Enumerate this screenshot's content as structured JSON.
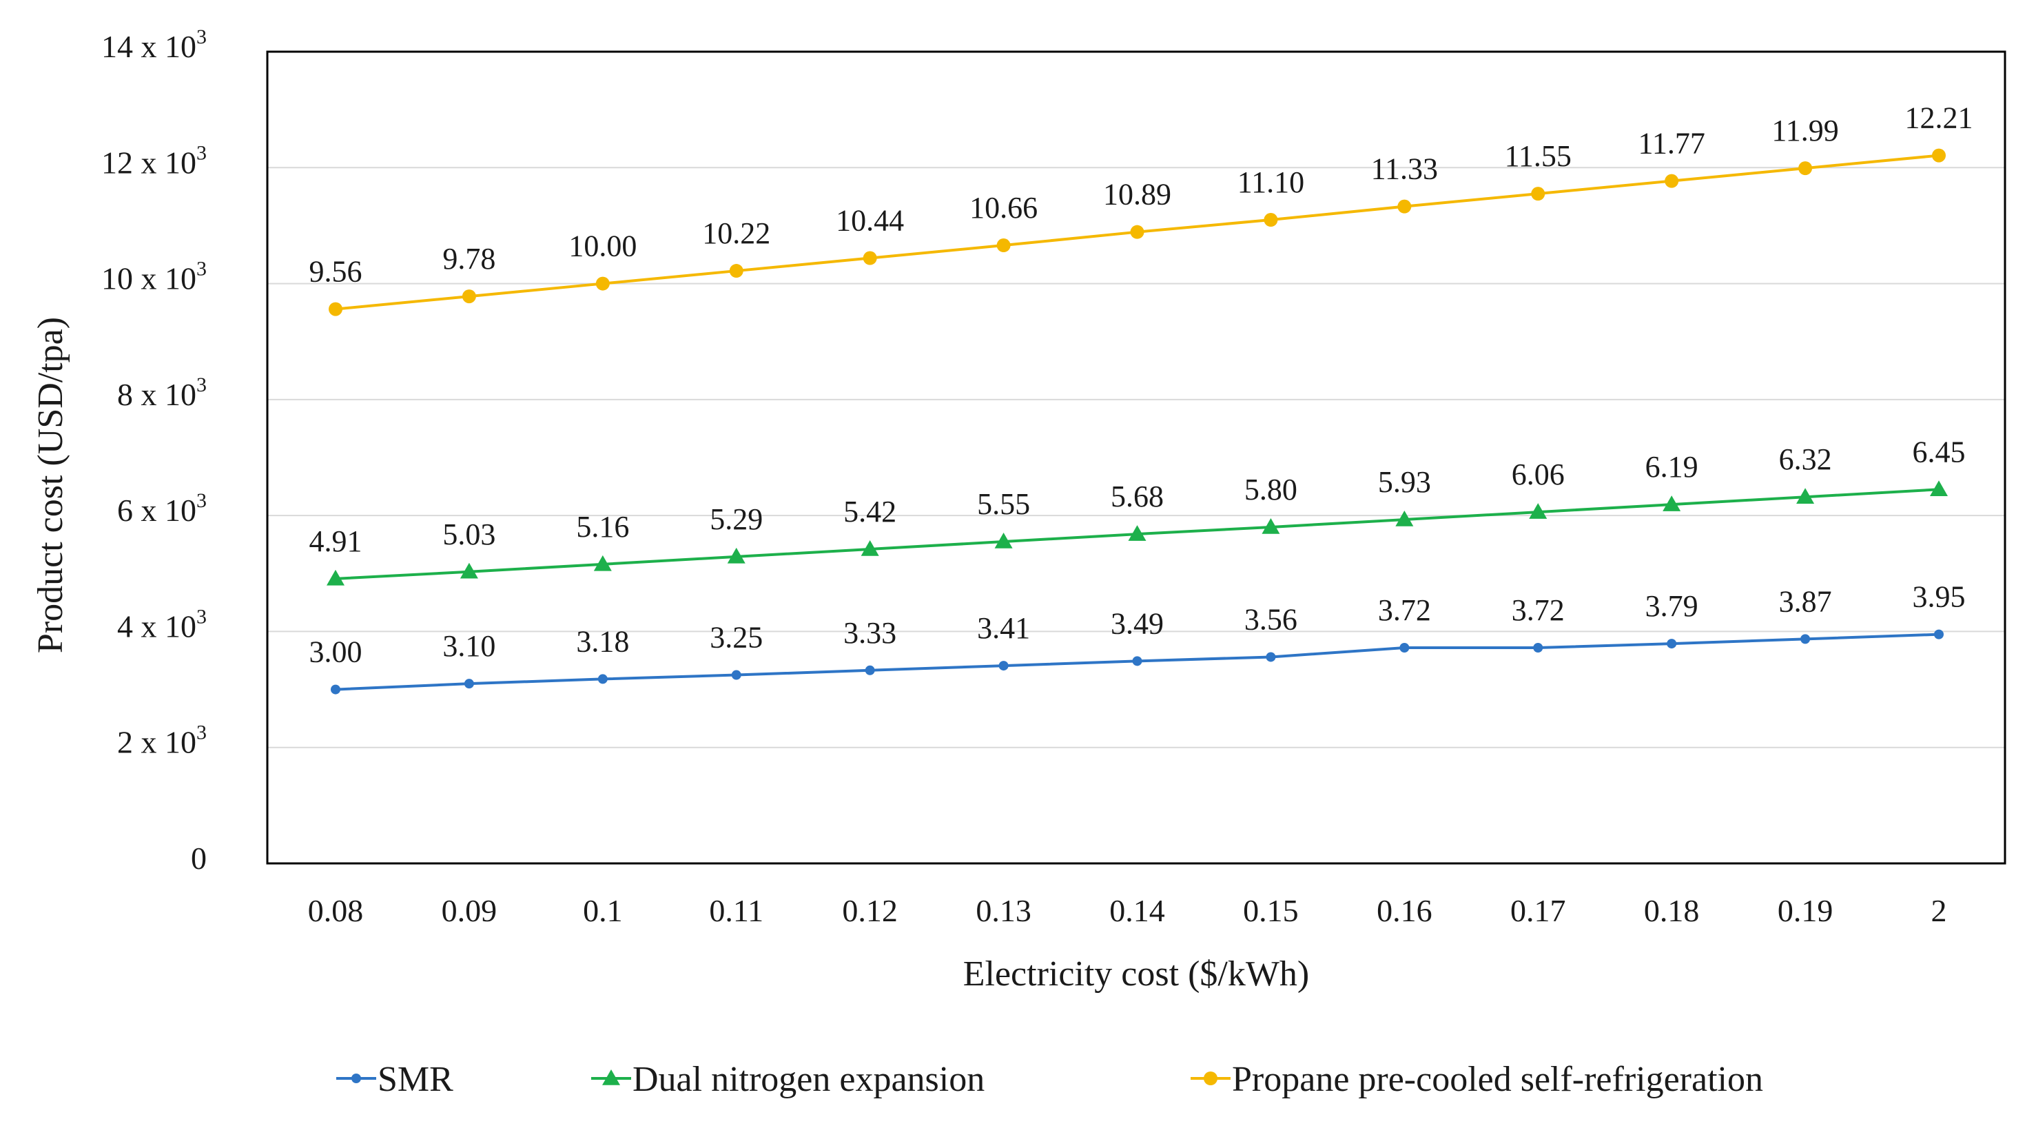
{
  "chart_data": {
    "type": "line",
    "title": "",
    "xlabel": "Electricity cost ($/kWh)",
    "ylabel": "Product cost (USD/tpa)",
    "categories": [
      "0.08",
      "0.09",
      "0.1",
      "0.11",
      "0.12",
      "0.13",
      "0.14",
      "0.15",
      "0.16",
      "0.17",
      "0.18",
      "0.19",
      "2"
    ],
    "ylim": [
      0,
      14000
    ],
    "y_ticks": [
      {
        "value": 0,
        "label": "0",
        "exp": ""
      },
      {
        "value": 2000,
        "label": "2 x 10",
        "exp": "3"
      },
      {
        "value": 4000,
        "label": "4 x 10",
        "exp": "3"
      },
      {
        "value": 6000,
        "label": "6 x 10",
        "exp": "3"
      },
      {
        "value": 8000,
        "label": "8 x 10",
        "exp": "3"
      },
      {
        "value": 10000,
        "label": "10 x 10",
        "exp": "3"
      },
      {
        "value": 12000,
        "label": "12 x 10",
        "exp": "3"
      },
      {
        "value": 14000,
        "label": "14 x 10",
        "exp": "3"
      }
    ],
    "grid": true,
    "legend_position": "bottom",
    "series": [
      {
        "name": "SMR",
        "color": "#2e75c6",
        "marker": "dot",
        "values": [
          3000,
          3100,
          3180,
          3250,
          3330,
          3410,
          3490,
          3560,
          3720,
          3720,
          3790,
          3870,
          3950
        ],
        "labels": [
          "3.00",
          "3.10",
          "3.18",
          "3.25",
          "3.33",
          "3.41",
          "3.49",
          "3.56",
          "3.72",
          "3.72",
          "3.79",
          "3.87",
          "3.95"
        ]
      },
      {
        "name": "Dual nitrogen expansion",
        "color": "#1db04b",
        "marker": "triangle",
        "values": [
          4910,
          5030,
          5160,
          5290,
          5420,
          5550,
          5680,
          5800,
          5930,
          6060,
          6190,
          6320,
          6450
        ],
        "labels": [
          "4.91",
          "5.03",
          "5.16",
          "5.29",
          "5.42",
          "5.55",
          "5.68",
          "5.80",
          "5.93",
          "6.06",
          "6.19",
          "6.32",
          "6.45"
        ]
      },
      {
        "name": "Propane pre-cooled self-refrigeration",
        "color": "#f5b800",
        "marker": "circle",
        "values": [
          9560,
          9780,
          10000,
          10220,
          10440,
          10660,
          10890,
          11100,
          11330,
          11550,
          11770,
          11990,
          12210
        ],
        "labels": [
          "9.56",
          "9.78",
          "10.00",
          "10.22",
          "10.44",
          "10.66",
          "10.89",
          "11.10",
          "11.33",
          "11.55",
          "11.77",
          "11.99",
          "12.21"
        ]
      }
    ]
  }
}
